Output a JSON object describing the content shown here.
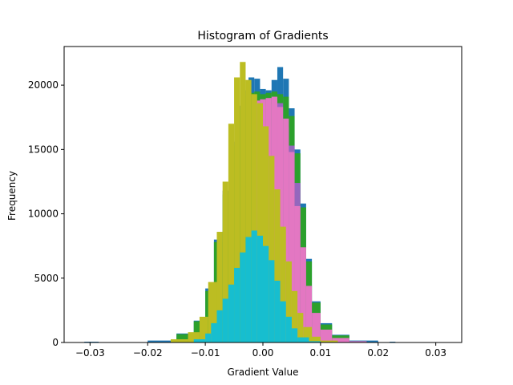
{
  "chart_data": {
    "type": "bar",
    "subtype": "overlaid-histogram",
    "title": "Histogram of Gradients",
    "xlabel": "Gradient Value",
    "ylabel": "Frequency",
    "xlim": [
      -0.0345,
      0.0345
    ],
    "ylim": [
      0,
      23000
    ],
    "x_ticks": [
      -0.03,
      -0.02,
      -0.01,
      0.0,
      0.01,
      0.02,
      0.03
    ],
    "x_tick_labels": [
      "−0.03",
      "−0.02",
      "−0.01",
      "0.00",
      "0.01",
      "0.02",
      "0.03"
    ],
    "y_ticks": [
      0,
      5000,
      10000,
      15000,
      20000
    ],
    "y_tick_labels": [
      "0",
      "5000",
      "10000",
      "15000",
      "20000"
    ],
    "grid": false,
    "legend": "none",
    "series": [
      {
        "color": "#1f77b4",
        "bins": [
          [
            -0.031,
            -0.0285,
            60
          ],
          [
            -0.02,
            -0.015,
            150
          ],
          [
            -0.015,
            -0.012,
            700
          ],
          [
            -0.012,
            -0.01,
            1700
          ],
          [
            -0.01,
            -0.0085,
            4200
          ],
          [
            -0.0085,
            -0.007,
            8000
          ],
          [
            -0.007,
            -0.0055,
            11800
          ],
          [
            -0.0055,
            -0.0045,
            15600
          ],
          [
            -0.0045,
            -0.0035,
            18400
          ],
          [
            -0.0035,
            -0.0025,
            19600
          ],
          [
            -0.0025,
            -0.0015,
            20600
          ],
          [
            -0.0015,
            -0.0005,
            20500
          ],
          [
            -0.0005,
            0.0005,
            19700
          ],
          [
            0.0005,
            0.0015,
            19600
          ],
          [
            0.0015,
            0.0025,
            20400
          ],
          [
            0.0025,
            0.0035,
            21400
          ],
          [
            0.0035,
            0.0045,
            20500
          ],
          [
            0.0045,
            0.0055,
            18200
          ],
          [
            0.0055,
            0.0065,
            15000
          ],
          [
            0.0065,
            0.0075,
            10800
          ],
          [
            0.0075,
            0.0085,
            6500
          ],
          [
            0.0085,
            0.01,
            3200
          ],
          [
            0.01,
            0.012,
            1500
          ],
          [
            0.012,
            0.015,
            600
          ],
          [
            0.015,
            0.02,
            150
          ],
          [
            0.022,
            0.023,
            60
          ]
        ]
      },
      {
        "color": "#2ca02c",
        "bins": [
          [
            -0.015,
            -0.012,
            650
          ],
          [
            -0.012,
            -0.01,
            1650
          ],
          [
            -0.01,
            -0.0085,
            4000
          ],
          [
            -0.0085,
            -0.007,
            7800
          ],
          [
            -0.007,
            -0.0055,
            11500
          ],
          [
            -0.0055,
            -0.0045,
            15300
          ],
          [
            -0.0045,
            -0.0035,
            18100
          ],
          [
            -0.0035,
            -0.0025,
            19200
          ],
          [
            -0.0025,
            -0.0015,
            19400
          ],
          [
            -0.0015,
            -0.0005,
            19500
          ],
          [
            -0.0005,
            0.0005,
            19300
          ],
          [
            0.0005,
            0.0015,
            19400
          ],
          [
            0.0015,
            0.0025,
            19500
          ],
          [
            0.0025,
            0.0035,
            19300
          ],
          [
            0.0035,
            0.0045,
            19100
          ],
          [
            0.0045,
            0.0055,
            17600
          ],
          [
            0.0055,
            0.0065,
            14700
          ],
          [
            0.0065,
            0.0075,
            10500
          ],
          [
            0.0075,
            0.0085,
            6300
          ],
          [
            0.0085,
            0.01,
            3100
          ],
          [
            0.01,
            0.012,
            1400
          ],
          [
            0.012,
            0.015,
            550
          ]
        ]
      },
      {
        "color": "#9467bd",
        "bins": [
          [
            0.0,
            0.0015,
            16800
          ],
          [
            0.0015,
            0.0025,
            18500
          ],
          [
            0.0025,
            0.0035,
            18600
          ],
          [
            0.0035,
            0.0045,
            16700
          ],
          [
            0.0045,
            0.0055,
            15300
          ],
          [
            0.0055,
            0.0065,
            12400
          ]
        ]
      },
      {
        "color": "#e377c2",
        "bins": [
          [
            -0.0015,
            -0.0005,
            18800
          ],
          [
            -0.0005,
            0.0005,
            18900
          ],
          [
            0.0005,
            0.0015,
            19000
          ],
          [
            0.0015,
            0.0025,
            19100
          ],
          [
            0.0025,
            0.0035,
            18300
          ],
          [
            0.0035,
            0.0045,
            17400
          ],
          [
            0.0045,
            0.0055,
            14800
          ],
          [
            0.0055,
            0.0065,
            10600
          ],
          [
            0.0065,
            0.0075,
            7400
          ],
          [
            0.0075,
            0.0085,
            4400
          ],
          [
            0.0085,
            0.01,
            2300
          ],
          [
            0.01,
            0.012,
            1000
          ],
          [
            0.012,
            0.015,
            350
          ],
          [
            0.015,
            0.018,
            100
          ]
        ]
      },
      {
        "color": "#bcbd22",
        "bins": [
          [
            -0.016,
            -0.013,
            250
          ],
          [
            -0.013,
            -0.011,
            800
          ],
          [
            -0.011,
            -0.0095,
            2000
          ],
          [
            -0.0095,
            -0.008,
            4700
          ],
          [
            -0.008,
            -0.007,
            8600
          ],
          [
            -0.007,
            -0.006,
            12500
          ],
          [
            -0.006,
            -0.005,
            17000
          ],
          [
            -0.005,
            -0.004,
            20600
          ],
          [
            -0.004,
            -0.003,
            21800
          ],
          [
            -0.003,
            -0.002,
            20400
          ],
          [
            -0.002,
            -0.001,
            19300
          ],
          [
            -0.001,
            0.0,
            18600
          ],
          [
            0.0,
            0.001,
            16800
          ],
          [
            0.001,
            0.002,
            14500
          ],
          [
            0.002,
            0.003,
            11900
          ],
          [
            0.003,
            0.004,
            9000
          ],
          [
            0.004,
            0.005,
            6300
          ],
          [
            0.005,
            0.006,
            4000
          ],
          [
            0.006,
            0.007,
            2300
          ],
          [
            0.007,
            0.0085,
            1200
          ],
          [
            0.0085,
            0.01,
            450
          ],
          [
            0.01,
            0.013,
            150
          ]
        ]
      },
      {
        "color": "#17becf",
        "bins": [
          [
            -0.012,
            -0.01,
            250
          ],
          [
            -0.01,
            -0.009,
            700
          ],
          [
            -0.009,
            -0.008,
            1500
          ],
          [
            -0.008,
            -0.007,
            2500
          ],
          [
            -0.007,
            -0.006,
            3400
          ],
          [
            -0.006,
            -0.005,
            4500
          ],
          [
            -0.005,
            -0.004,
            5800
          ],
          [
            -0.004,
            -0.003,
            7000
          ],
          [
            -0.003,
            -0.002,
            8200
          ],
          [
            -0.002,
            -0.001,
            8700
          ],
          [
            -0.001,
            0.0,
            8300
          ],
          [
            0.0,
            0.001,
            7500
          ],
          [
            0.001,
            0.002,
            6400
          ],
          [
            0.002,
            0.003,
            4800
          ],
          [
            0.003,
            0.004,
            3200
          ],
          [
            0.004,
            0.005,
            2000
          ],
          [
            0.005,
            0.006,
            1100
          ],
          [
            0.006,
            0.008,
            400
          ],
          [
            0.008,
            0.01,
            100
          ]
        ]
      }
    ]
  }
}
